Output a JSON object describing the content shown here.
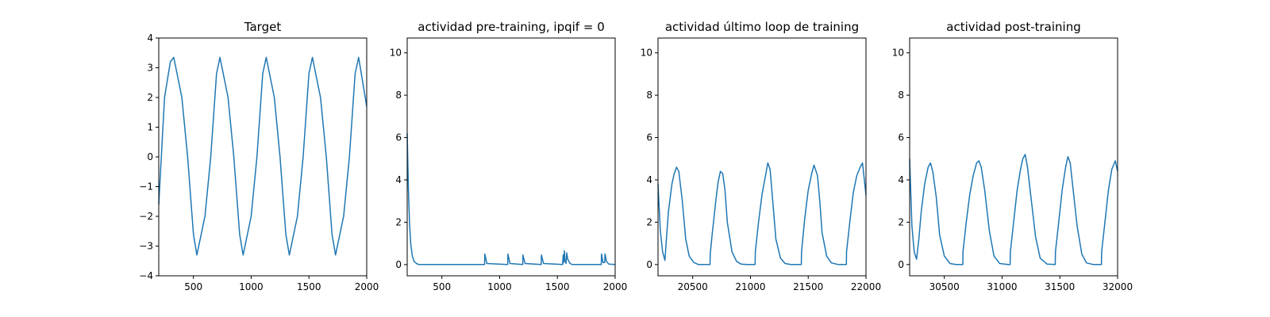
{
  "chart_data": [
    {
      "type": "line",
      "title": "Target",
      "xlim": [
        200,
        2000
      ],
      "ylim": [
        -4,
        4
      ],
      "xticks": [
        500,
        1000,
        1500,
        2000
      ],
      "yticks": [
        -4,
        -3,
        -2,
        -1,
        0,
        1,
        2,
        3,
        4
      ],
      "xtick_labels": [
        "500",
        "1000",
        "1500",
        "2000"
      ],
      "ytick_labels": [
        "−4",
        "−3",
        "−2",
        "−1",
        "0",
        "1",
        "2",
        "3",
        "4"
      ],
      "series": [
        {
          "color": "#1f77b4",
          "x": [
            200,
            250,
            300,
            330,
            400,
            450,
            500,
            530,
            600,
            650,
            700,
            730,
            800,
            850,
            900,
            930,
            1000,
            1050,
            1100,
            1130,
            1200,
            1250,
            1300,
            1330,
            1400,
            1450,
            1500,
            1530,
            1600,
            1650,
            1700,
            1730,
            1800,
            1850,
            1900,
            1930,
            2000
          ],
          "y": [
            -1.6,
            2.0,
            3.2,
            3.35,
            2.0,
            0.0,
            -2.6,
            -3.3,
            -2.0,
            0.0,
            2.8,
            3.35,
            2.0,
            0.0,
            -2.6,
            -3.3,
            -2.0,
            0.0,
            2.8,
            3.35,
            2.0,
            0.0,
            -2.6,
            -3.3,
            -2.0,
            0.0,
            2.8,
            3.35,
            2.0,
            0.0,
            -2.6,
            -3.3,
            -2.0,
            0.0,
            2.8,
            3.35,
            1.7
          ]
        }
      ]
    },
    {
      "type": "line",
      "title": "actividad pre-training, ipqif = 0",
      "xlim": [
        200,
        2000
      ],
      "ylim": [
        -0.53,
        10.7
      ],
      "xticks": [
        500,
        1000,
        1500,
        2000
      ],
      "yticks": [
        0,
        2,
        4,
        6,
        8,
        10
      ],
      "xtick_labels": [
        "500",
        "1000",
        "1500",
        "2000"
      ],
      "ytick_labels": [
        "0",
        "2",
        "4",
        "6",
        "8",
        "10"
      ],
      "series": [
        {
          "color": "#1f77b4",
          "x": [
            200,
            210,
            220,
            230,
            245,
            260,
            280,
            300,
            870,
            872,
            890,
            1070,
            1072,
            1090,
            1200,
            1202,
            1220,
            1360,
            1362,
            1380,
            1545,
            1550,
            1555,
            1560,
            1565,
            1575,
            1580,
            1590,
            1610,
            1630,
            1880,
            1882,
            1895,
            1910,
            1912,
            1925,
            1945,
            2000
          ],
          "y": [
            6.2,
            3.6,
            2.0,
            1.0,
            0.4,
            0.15,
            0.05,
            0.0,
            0.0,
            0.5,
            0.05,
            0.0,
            0.5,
            0.05,
            0.0,
            0.45,
            0.05,
            0.0,
            0.45,
            0.05,
            0.0,
            0.45,
            0.1,
            0.65,
            0.2,
            0.05,
            0.55,
            0.25,
            0.05,
            0.0,
            0.0,
            0.5,
            0.1,
            0.1,
            0.5,
            0.15,
            0.02,
            0.0
          ]
        }
      ]
    },
    {
      "type": "line",
      "title": "actividad último loop de training",
      "xlim": [
        20200,
        22000
      ],
      "ylim": [
        -0.53,
        10.7
      ],
      "xticks": [
        20500,
        21000,
        21500,
        22000
      ],
      "yticks": [
        0,
        2,
        4,
        6,
        8,
        10
      ],
      "xtick_labels": [
        "20500",
        "21000",
        "21500",
        "22000"
      ],
      "ytick_labels": [
        "0",
        "2",
        "4",
        "6",
        "8",
        "10"
      ],
      "series": [
        {
          "color": "#1f77b4",
          "x": [
            20200,
            20220,
            20240,
            20260,
            20270,
            20290,
            20320,
            20340,
            20360,
            20380,
            20410,
            20440,
            20470,
            20510,
            20550,
            20600,
            20650,
            20652,
            20670,
            20700,
            20720,
            20740,
            20760,
            20780,
            20800,
            20840,
            20880,
            20920,
            20970,
            21000,
            21040,
            21042,
            21070,
            21100,
            21130,
            21150,
            21170,
            21190,
            21220,
            21260,
            21300,
            21350,
            21400,
            21440,
            21442,
            21470,
            21500,
            21530,
            21550,
            21580,
            21600,
            21620,
            21660,
            21700,
            21760,
            21800,
            21830,
            21832,
            21860,
            21890,
            21920,
            21950,
            21970,
            22000
          ],
          "y": [
            3.8,
            1.6,
            0.6,
            0.2,
            1.0,
            2.5,
            3.8,
            4.3,
            4.6,
            4.4,
            3.0,
            1.2,
            0.4,
            0.1,
            0.0,
            0.0,
            0.0,
            0.5,
            1.5,
            3.0,
            3.9,
            4.4,
            4.3,
            3.5,
            2.0,
            0.6,
            0.15,
            0.02,
            0.0,
            0.0,
            0.0,
            0.6,
            2.0,
            3.3,
            4.2,
            4.8,
            4.5,
            3.2,
            1.2,
            0.3,
            0.05,
            0.0,
            0.0,
            0.0,
            0.6,
            2.2,
            3.5,
            4.3,
            4.7,
            4.2,
            3.0,
            1.5,
            0.4,
            0.08,
            0.0,
            0.0,
            0.0,
            0.6,
            2.0,
            3.4,
            4.2,
            4.6,
            4.8,
            3.3
          ]
        }
      ]
    },
    {
      "type": "line",
      "title": "actividad post-training",
      "xlim": [
        30200,
        32000
      ],
      "ylim": [
        -0.53,
        10.7
      ],
      "xticks": [
        30500,
        31000,
        31500,
        32000
      ],
      "yticks": [
        0,
        2,
        4,
        6,
        8,
        10
      ],
      "xtick_labels": [
        "30500",
        "31000",
        "31500",
        "32000"
      ],
      "ytick_labels": [
        "0",
        "2",
        "4",
        "6",
        "8",
        "10"
      ],
      "series": [
        {
          "color": "#1f77b4",
          "x": [
            30200,
            30220,
            30240,
            30260,
            30280,
            30300,
            30330,
            30360,
            30380,
            30400,
            30430,
            30460,
            30500,
            30550,
            30600,
            30660,
            30662,
            30690,
            30720,
            30750,
            30780,
            30800,
            30820,
            30850,
            30890,
            30930,
            30980,
            31050,
            31070,
            31072,
            31100,
            31130,
            31160,
            31180,
            31200,
            31220,
            31250,
            31290,
            31330,
            31390,
            31460,
            31462,
            31490,
            31520,
            31550,
            31570,
            31590,
            31610,
            31650,
            31690,
            31730,
            31790,
            31860,
            31862,
            31890,
            31920,
            31950,
            31980,
            32000
          ],
          "y": [
            5.0,
            1.8,
            0.6,
            0.25,
            1.2,
            2.5,
            3.8,
            4.6,
            4.8,
            4.4,
            3.2,
            1.4,
            0.4,
            0.05,
            0.0,
            0.0,
            0.6,
            2.0,
            3.3,
            4.2,
            4.8,
            4.9,
            4.6,
            3.5,
            1.6,
            0.4,
            0.05,
            0.0,
            0.0,
            0.6,
            2.0,
            3.5,
            4.5,
            5.0,
            5.2,
            4.6,
            3.2,
            1.3,
            0.3,
            0.02,
            0.0,
            0.6,
            2.0,
            3.5,
            4.6,
            5.1,
            4.8,
            3.8,
            1.8,
            0.5,
            0.08,
            0.0,
            0.0,
            0.6,
            2.0,
            3.5,
            4.5,
            4.9,
            4.4
          ]
        }
      ]
    }
  ]
}
